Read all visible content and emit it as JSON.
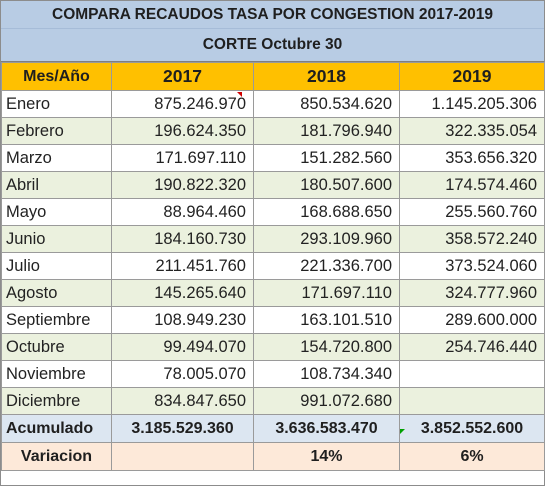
{
  "title": "COMPARA RECAUDOS TASA POR CONGESTION 2017-2019",
  "subtitle": "CORTE Octubre 30",
  "headers": [
    "Mes/Año",
    "2017",
    "2018",
    "2019"
  ],
  "rows": [
    {
      "month": "Enero",
      "y2017": "875.246.970",
      "y2018": "850.534.620",
      "y2019": "1.145.205.306"
    },
    {
      "month": "Febrero",
      "y2017": "196.624.350",
      "y2018": "181.796.940",
      "y2019": "322.335.054"
    },
    {
      "month": "Marzo",
      "y2017": "171.697.110",
      "y2018": "151.282.560",
      "y2019": "353.656.320"
    },
    {
      "month": "Abril",
      "y2017": "190.822.320",
      "y2018": "180.507.600",
      "y2019": "174.574.460"
    },
    {
      "month": "Mayo",
      "y2017": "88.964.460",
      "y2018": "168.688.650",
      "y2019": "255.560.760"
    },
    {
      "month": "Junio",
      "y2017": "184.160.730",
      "y2018": "293.109.960",
      "y2019": "358.572.240"
    },
    {
      "month": "Julio",
      "y2017": "211.451.760",
      "y2018": "221.336.700",
      "y2019": "373.524.060"
    },
    {
      "month": "Agosto",
      "y2017": "145.265.640",
      "y2018": "171.697.110",
      "y2019": "324.777.960"
    },
    {
      "month": "Septiembre",
      "y2017": "108.949.230",
      "y2018": "163.101.510",
      "y2019": "289.600.000"
    },
    {
      "month": "Octubre",
      "y2017": "99.494.070",
      "y2018": "154.720.800",
      "y2019": "254.746.440"
    },
    {
      "month": "Noviembre",
      "y2017": "78.005.070",
      "y2018": "108.734.340",
      "y2019": ""
    },
    {
      "month": "Diciembre",
      "y2017": "834.847.650",
      "y2018": "991.072.680",
      "y2019": ""
    }
  ],
  "acumulado": {
    "label": "Acumulado",
    "y2017": "3.185.529.360",
    "y2018": "3.636.583.470",
    "y2019": "3.852.552.600"
  },
  "variacion": {
    "label": "Variacion",
    "y2017": "",
    "y2018": "14%",
    "y2019": "6%"
  },
  "colors": {
    "title_bg": "#b8cce4",
    "header_bg": "#ffc000",
    "band_green": "#ebf1de",
    "acumulado_bg": "#dce6f1",
    "variacion_bg": "#fde9d9"
  }
}
